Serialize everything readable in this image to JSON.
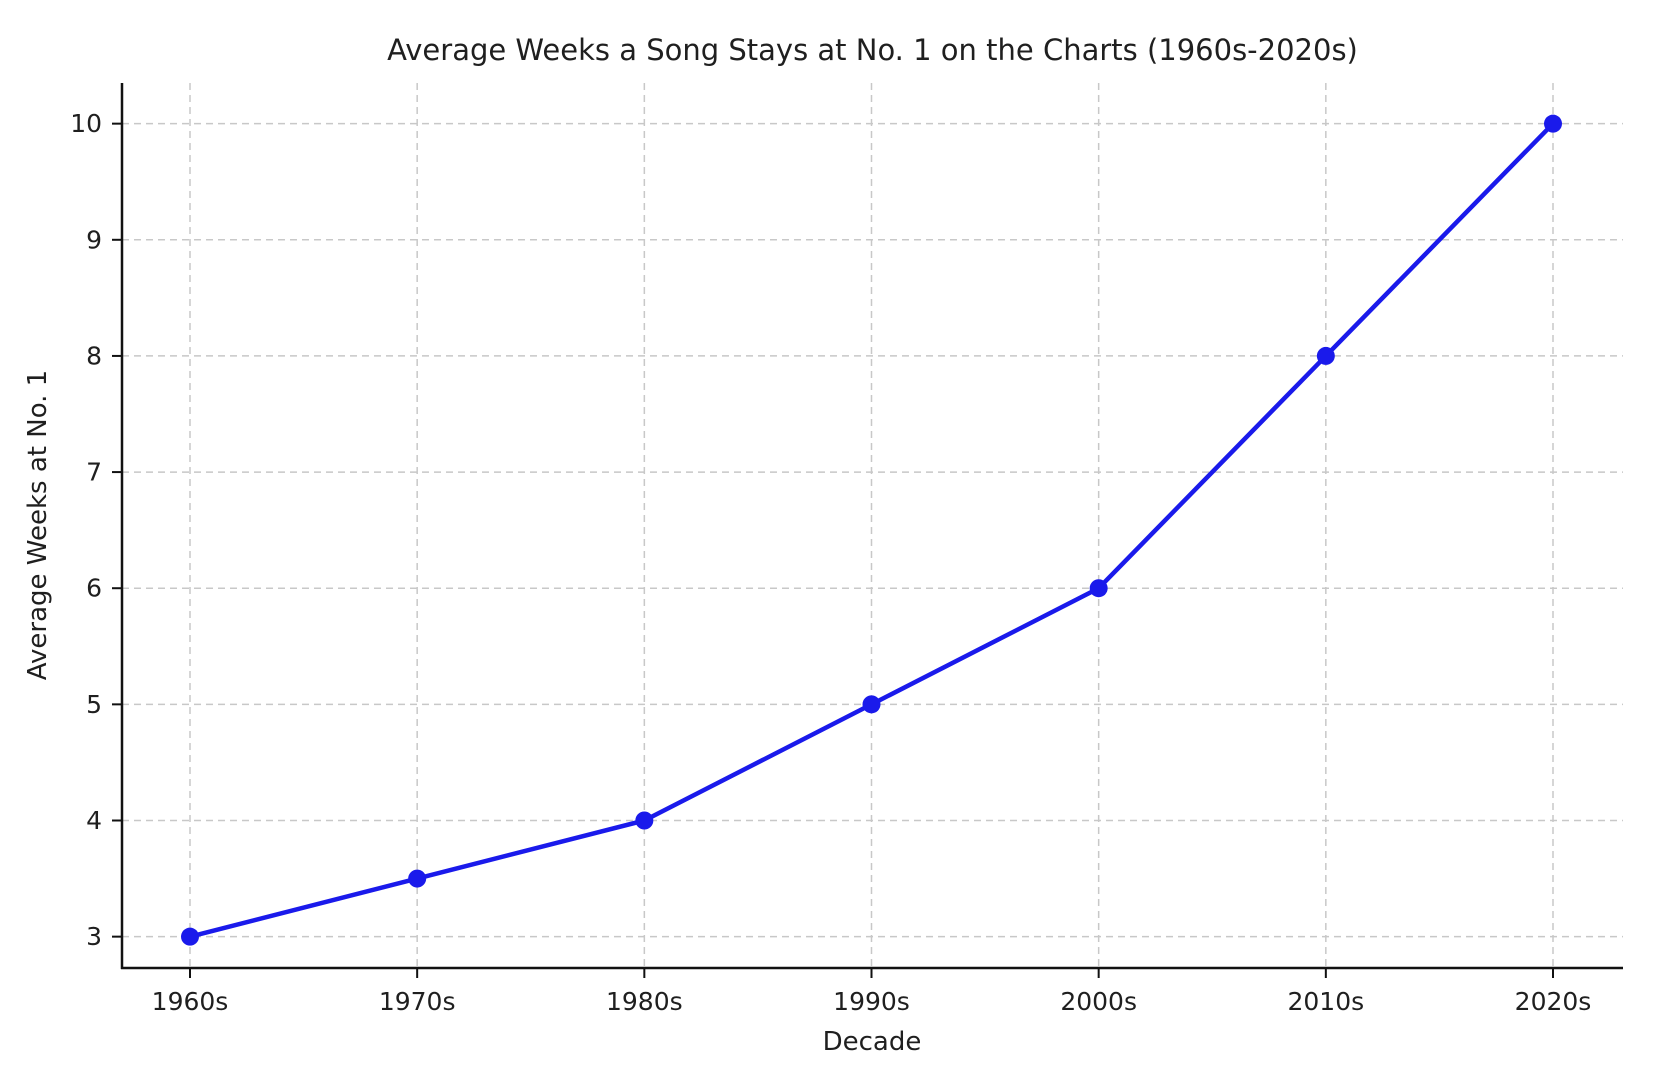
{
  "chart_data": {
    "type": "line",
    "title": "Average Weeks a Song Stays at No. 1 on the Charts (1960s-2020s)",
    "xlabel": "Decade",
    "ylabel": "Average Weeks at No. 1",
    "categories": [
      "1960s",
      "1970s",
      "1980s",
      "1990s",
      "2000s",
      "2010s",
      "2020s"
    ],
    "series": [
      {
        "name": "Average Weeks at No. 1",
        "values": [
          3,
          3.5,
          4,
          5,
          6,
          8,
          10
        ]
      }
    ],
    "y_ticks": [
      3,
      4,
      5,
      6,
      7,
      8,
      9,
      10
    ],
    "ylim": [
      2.73,
      10.35
    ],
    "grid": true,
    "grid_style": "dashed",
    "legend_position": "none",
    "colors": {
      "line": "#1a1aeb",
      "marker": "#1a1aeb",
      "grid": "#c8c8c8",
      "axis": "#111111",
      "text": "#1f1f1f",
      "background": "#ffffff"
    }
  }
}
